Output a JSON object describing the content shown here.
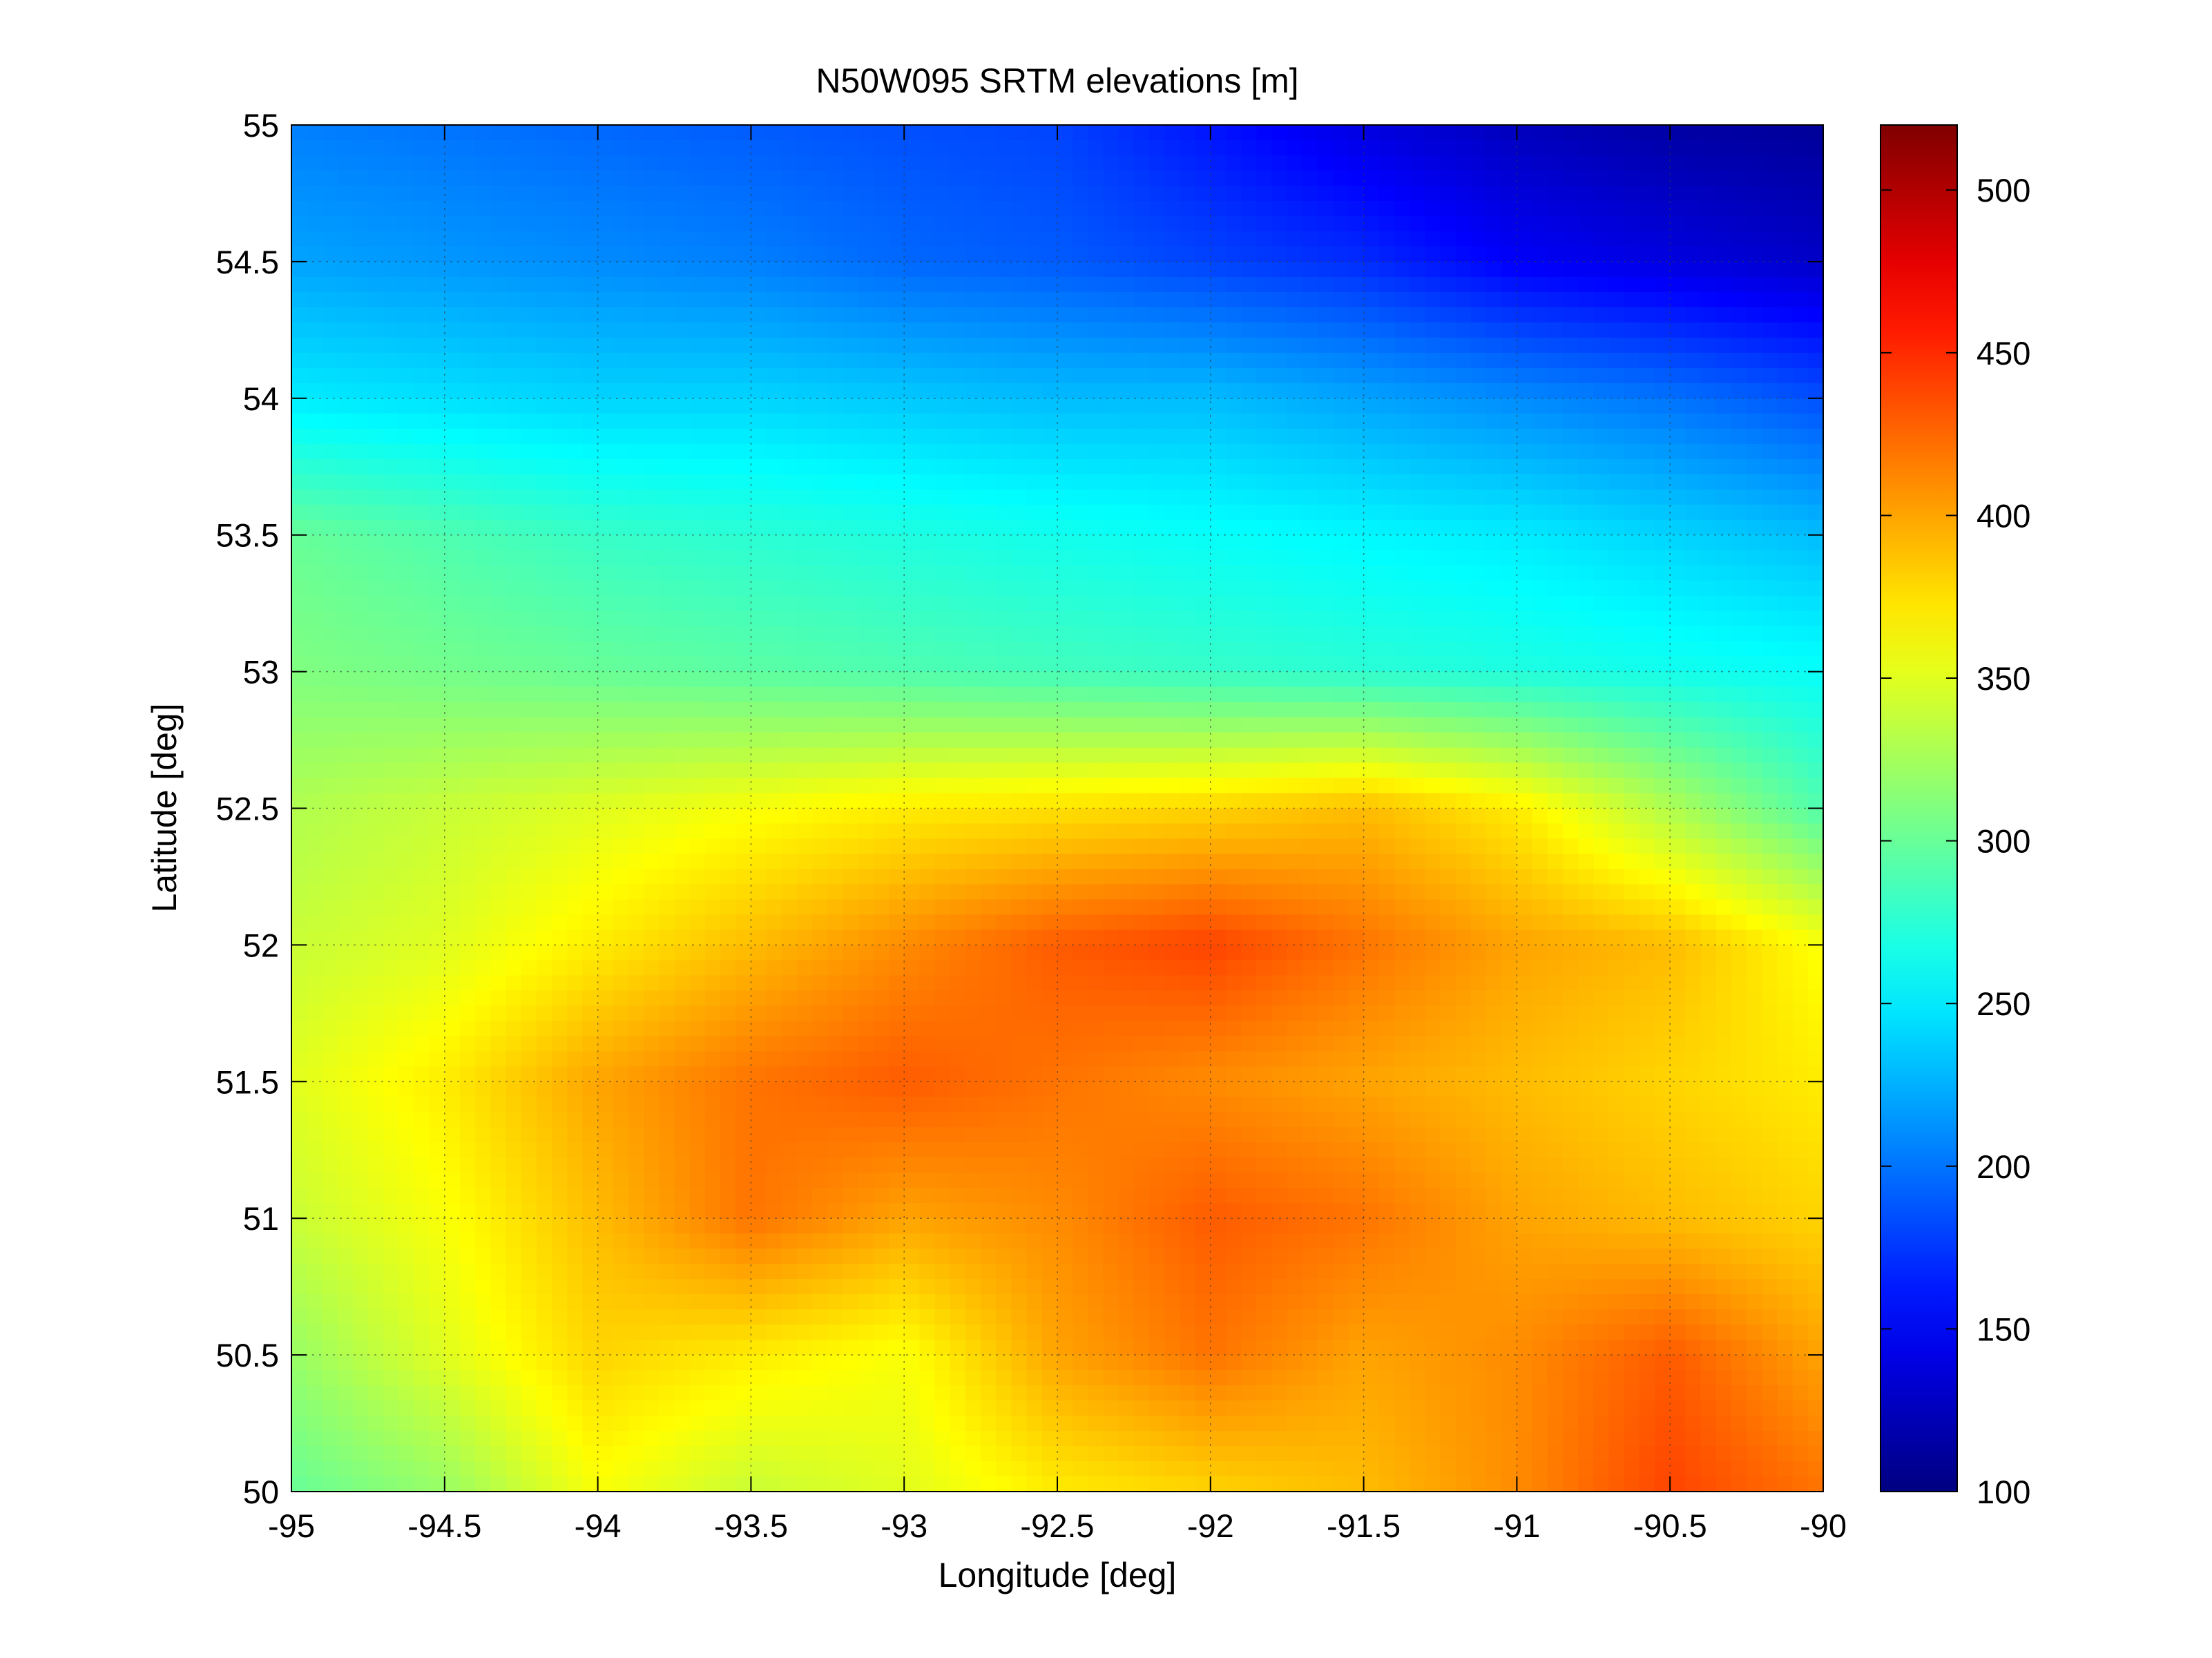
{
  "chart_data": {
    "type": "heatmap",
    "title": "N50W095 SRTM elevations [m]",
    "xlabel": "Longitude [deg]",
    "ylabel": "Latitude [deg]",
    "xlim": [
      -95,
      -90
    ],
    "ylim": [
      50,
      55
    ],
    "x_ticks": [
      -95,
      -94.5,
      -94,
      -93.5,
      -93,
      -92.5,
      -92,
      -91.5,
      -91,
      -90.5,
      -90
    ],
    "x_tick_labels": [
      "-95",
      "-94.5",
      "-94",
      "-93.5",
      "-93",
      "-92.5",
      "-92",
      "-91.5",
      "-91",
      "-90.5",
      "-90"
    ],
    "y_ticks": [
      50,
      50.5,
      51,
      51.5,
      52,
      52.5,
      53,
      53.5,
      54,
      54.5,
      55
    ],
    "y_tick_labels": [
      "50",
      "50.5",
      "51",
      "51.5",
      "52",
      "52.5",
      "53",
      "53.5",
      "54",
      "54.5",
      "55"
    ],
    "grid": true,
    "colormap": "jet",
    "colorbar": {
      "range": [
        100,
        520
      ],
      "ticks": [
        100,
        150,
        200,
        250,
        300,
        350,
        400,
        450,
        500
      ],
      "tick_labels": [
        "100",
        "150",
        "200",
        "250",
        "300",
        "350",
        "400",
        "450",
        "500"
      ]
    },
    "elevation_field_m": {
      "latitudes": [
        55,
        54.5,
        54,
        53.5,
        53,
        52.5,
        52,
        51.5,
        51,
        50.5,
        50
      ],
      "longitudes": [
        -95,
        -94.5,
        -94,
        -93.5,
        -93,
        -92.5,
        -92,
        -91.5,
        -91,
        -90.5,
        -90
      ],
      "values": [
        [
          205,
          200,
          195,
          190,
          185,
          180,
          160,
          140,
          125,
          115,
          110
        ],
        [
          220,
          215,
          210,
          205,
          195,
          190,
          180,
          170,
          150,
          140,
          130
        ],
        [
          250,
          245,
          240,
          240,
          235,
          230,
          230,
          220,
          210,
          200,
          185
        ],
        [
          300,
          290,
          280,
          275,
          270,
          265,
          260,
          255,
          250,
          240,
          230
        ],
        [
          310,
          305,
          300,
          295,
          290,
          285,
          280,
          275,
          270,
          265,
          260
        ],
        [
          330,
          340,
          350,
          360,
          370,
          375,
          380,
          390,
          370,
          330,
          290
        ],
        [
          340,
          350,
          370,
          390,
          410,
          430,
          440,
          420,
          400,
          390,
          360
        ],
        [
          350,
          370,
          400,
          420,
          430,
          420,
          410,
          400,
          390,
          380,
          370
        ],
        [
          340,
          360,
          390,
          420,
          400,
          410,
          430,
          420,
          400,
          390,
          380
        ],
        [
          320,
          350,
          380,
          370,
          360,
          400,
          420,
          400,
          410,
          430,
          400
        ],
        [
          300,
          320,
          360,
          340,
          350,
          370,
          380,
          390,
          410,
          440,
          420
        ]
      ]
    }
  }
}
